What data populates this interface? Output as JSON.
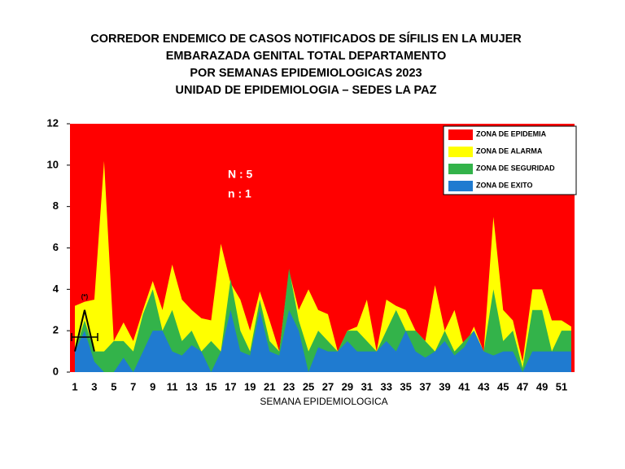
{
  "chart_data": {
    "type": "area",
    "title": [
      "CORREDOR ENDEMICO DE CASOS NOTIFICADOS DE SÍFILIS EN LA MUJER",
      "EMBARAZADA GENITAL TOTAL DEPARTAMENTO",
      "POR SEMANAS EPIDEMIOLOGICAS 2023",
      "UNIDAD DE EPIDEMIOLOGIA – SEDES LA PAZ"
    ],
    "x_label": "SEMANA EPIDEMIOLOGICA",
    "annotations": [
      "N : 5",
      "n : 1",
      "(*)"
    ],
    "categories": [
      1,
      null,
      3,
      null,
      5,
      null,
      7,
      null,
      9,
      null,
      11,
      null,
      13,
      null,
      15,
      null,
      17,
      null,
      19,
      null,
      21,
      null,
      23,
      null,
      25,
      null,
      27,
      null,
      29,
      null,
      31,
      null,
      33,
      null,
      35,
      null,
      37,
      null,
      39,
      null,
      41,
      null,
      43,
      null,
      45,
      null,
      47,
      null,
      49,
      null,
      51,
      null
    ],
    "background_zone": {
      "name": "ZONA DE EPIDEMIA",
      "color": "#ff0000"
    },
    "series": [
      {
        "name": "ZONA DE ALARMA",
        "color": "#ffff00",
        "values": [
          3.2,
          3.4,
          3.5,
          10.2,
          1.5,
          2.4,
          1.5,
          3,
          4.4,
          3,
          5.2,
          3.5,
          3,
          2.6,
          2.5,
          6.2,
          4.3,
          3.5,
          2,
          3.9,
          2.5,
          1,
          4.9,
          3,
          4,
          3,
          2.8,
          1,
          2,
          2.2,
          3.5,
          1,
          3.5,
          3.2,
          3,
          2,
          1.5,
          4.2,
          2,
          3,
          1.2,
          2.2,
          1,
          7.5,
          3,
          2.5,
          0.5,
          4,
          4,
          2.5,
          2.5,
          2.2
        ]
      },
      {
        "name": "ZONA DE SEGURIDAD",
        "color": "#33b34a",
        "values": [
          1,
          2.5,
          1,
          1,
          1.5,
          1.5,
          1,
          2.8,
          4,
          2,
          3,
          1.5,
          2,
          1,
          1.5,
          1,
          4.5,
          2,
          1,
          3.5,
          1.5,
          1,
          5,
          2.5,
          1,
          2,
          1.5,
          1,
          2,
          2,
          1.5,
          1,
          2,
          3,
          2,
          2,
          1.5,
          1,
          2,
          1,
          1.5,
          2,
          1,
          4,
          1.5,
          2,
          0.2,
          3,
          3,
          1,
          2,
          2
        ]
      },
      {
        "name": "ZONA DE EXITO",
        "color": "#1f7bd0",
        "values": [
          1,
          2,
          0.5,
          0,
          0,
          0.7,
          0,
          1,
          2,
          2,
          1,
          0.8,
          1.3,
          1,
          0,
          1,
          3,
          1,
          0.8,
          3,
          1,
          0.8,
          3,
          2,
          0,
          1.2,
          1,
          1,
          1.5,
          1,
          1,
          1,
          1.5,
          1,
          2,
          1,
          0.7,
          1,
          1.5,
          0.8,
          1.2,
          2,
          1,
          0.8,
          1,
          1,
          0,
          1,
          1,
          1,
          1,
          1
        ]
      }
    ],
    "cases": {
      "color": "#000000",
      "values": [
        1,
        3,
        1,
        null,
        null,
        null,
        null,
        null,
        null,
        null,
        null,
        null,
        null,
        null,
        null,
        null,
        null,
        null,
        null,
        null,
        null,
        null,
        null,
        null,
        null,
        null,
        null,
        null,
        null,
        null,
        null,
        null,
        null,
        null,
        null,
        null,
        null,
        null,
        null,
        null,
        null,
        null,
        null,
        null,
        null,
        null,
        null,
        null,
        null,
        null,
        null,
        null
      ]
    },
    "ylim": [
      0,
      12
    ],
    "yticks": [
      0,
      2,
      4,
      6,
      8,
      10,
      12
    ]
  }
}
